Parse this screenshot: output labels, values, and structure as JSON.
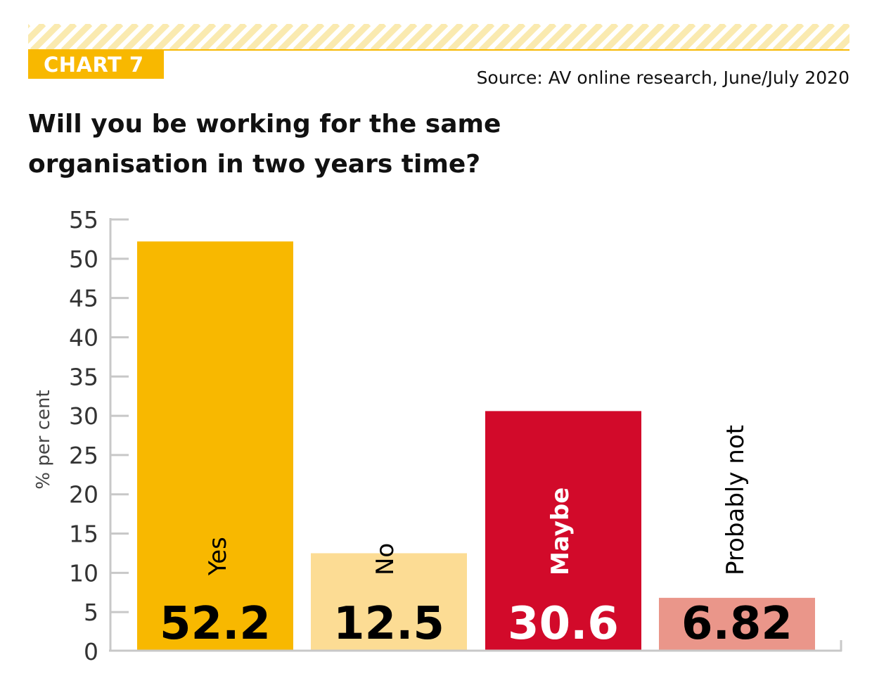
{
  "header": {
    "tag": "CHART 7",
    "source": "Source: AV online research, June/July 2020",
    "title": "Will you be working for the same organisation in two years time?"
  },
  "colors": {
    "accent": "#f8b800",
    "hatch": "#faeab0"
  },
  "chart_data": {
    "type": "bar",
    "categories": [
      "Yes",
      "No",
      "Maybe",
      "Probably not"
    ],
    "values": [
      52.2,
      12.5,
      30.6,
      6.82
    ],
    "value_labels": [
      "52.2",
      "12.5",
      "30.6",
      "6.82"
    ],
    "bar_colors": [
      "#f8b800",
      "#fcdc94",
      "#d20a2a",
      "#ea968a"
    ],
    "value_label_colors": [
      "#000000",
      "#000000",
      "#ffffff",
      "#000000"
    ],
    "category_label_colors": [
      "#000000",
      "#000000",
      "#ffffff",
      "#000000"
    ],
    "ylabel": "% per cent",
    "xlabel": "",
    "ylim": [
      0,
      55
    ],
    "yticks": [
      0,
      5,
      10,
      15,
      20,
      25,
      30,
      35,
      40,
      45,
      50,
      55
    ],
    "grid": false,
    "legend": "none"
  }
}
